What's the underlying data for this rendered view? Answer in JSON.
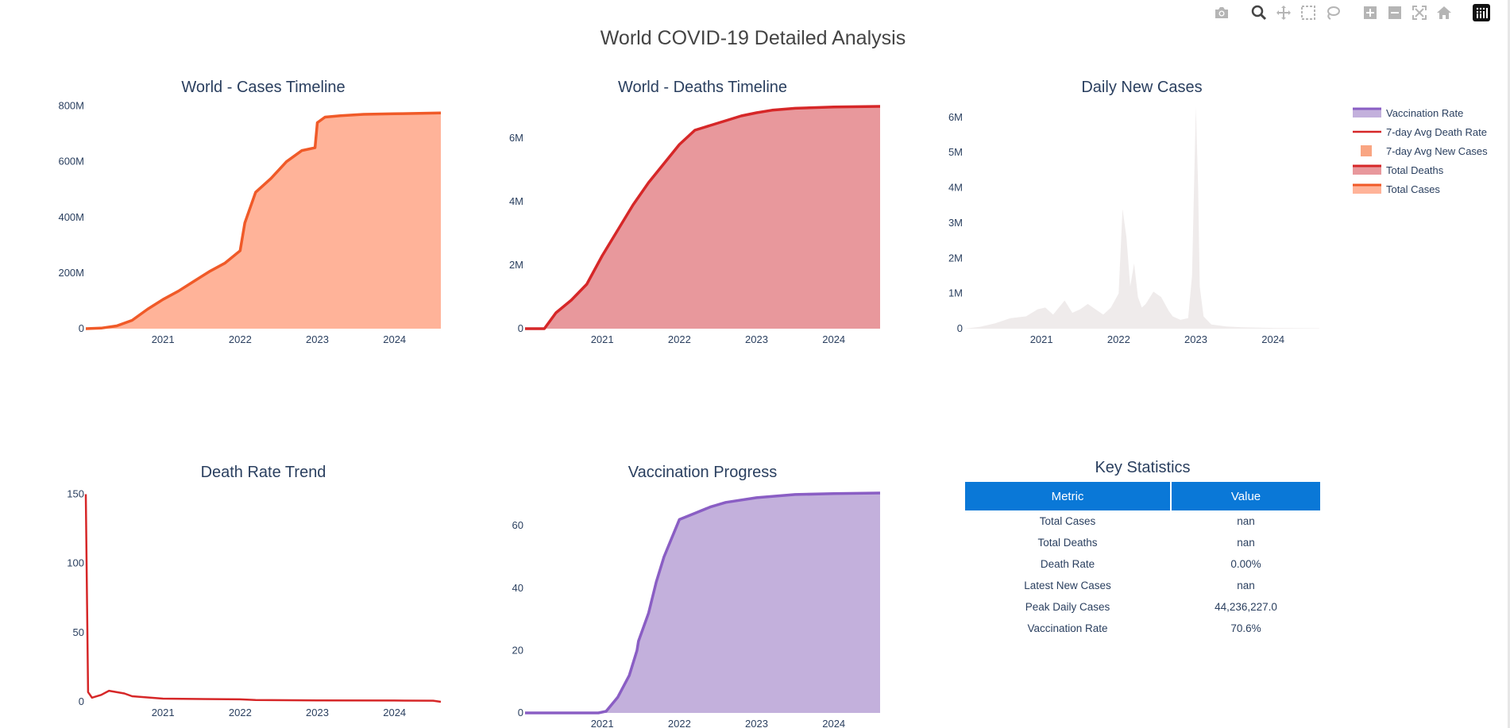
{
  "page": {
    "title": "World COVID-19 Detailed Analysis"
  },
  "modebar": {
    "buttons": [
      {
        "name": "camera-icon",
        "label": "Download plot as a png"
      },
      {
        "name": "zoom-icon",
        "label": "Zoom"
      },
      {
        "name": "pan-icon",
        "label": "Pan"
      },
      {
        "name": "box-select-icon",
        "label": "Box Select"
      },
      {
        "name": "lasso-select-icon",
        "label": "Lasso Select"
      },
      {
        "name": "zoom-in-icon",
        "label": "Zoom in"
      },
      {
        "name": "zoom-out-icon",
        "label": "Zoom out"
      },
      {
        "name": "autoscale-icon",
        "label": "Autoscale"
      },
      {
        "name": "reset-axes-icon",
        "label": "Reset axes"
      },
      {
        "name": "plotly-logo-icon",
        "label": "Produced with Plotly"
      }
    ]
  },
  "colors": {
    "cases_line": "#f05a28",
    "cases_fill": "#ffb399",
    "deaths_line": "#d62728",
    "deaths_fill": "#e8989c",
    "daily_fill": "#efebeb",
    "rate_line": "#d62728",
    "vacc_line": "#8a5ec4",
    "vacc_fill": "#c3b0dc",
    "header_bg": "#0a78d7"
  },
  "legend": [
    {
      "label": "Vaccination Rate",
      "style": "area",
      "color": "#8a5ec4",
      "fill": "#c3b0dc"
    },
    {
      "label": "7-day Avg Death Rate",
      "style": "line",
      "color": "#d62728"
    },
    {
      "label": "7-day Avg New Cases",
      "style": "square",
      "color": "#f9a582"
    },
    {
      "label": "Total Deaths",
      "style": "area",
      "color": "#d62728",
      "fill": "#e8989c"
    },
    {
      "label": "Total Cases",
      "style": "area",
      "color": "#f05a28",
      "fill": "#ffb399"
    }
  ],
  "chart_data": [
    {
      "id": "cases",
      "type": "area",
      "title": "World - Cases Timeline",
      "x_ticks": [
        "2021",
        "2022",
        "2023",
        "2024"
      ],
      "y_ticks": [
        {
          "v": 0,
          "label": "0"
        },
        {
          "v": 200,
          "label": "200M"
        },
        {
          "v": 400,
          "label": "400M"
        },
        {
          "v": 600,
          "label": "600M"
        },
        {
          "v": 800,
          "label": "800M"
        }
      ],
      "xlim": [
        2020.0,
        2024.6
      ],
      "ylim": [
        0,
        810
      ],
      "units": "millions",
      "series": [
        {
          "name": "Total Cases",
          "x": [
            2020.0,
            2020.2,
            2020.4,
            2020.6,
            2020.8,
            2021.0,
            2021.2,
            2021.4,
            2021.6,
            2021.8,
            2022.0,
            2022.06,
            2022.2,
            2022.4,
            2022.6,
            2022.8,
            2022.97,
            2023.0,
            2023.1,
            2023.3,
            2023.6,
            2024.0,
            2024.6
          ],
          "y": [
            0,
            2,
            10,
            30,
            70,
            105,
            135,
            170,
            205,
            235,
            280,
            380,
            490,
            540,
            600,
            640,
            650,
            740,
            760,
            765,
            770,
            772,
            775
          ]
        }
      ]
    },
    {
      "id": "deaths",
      "type": "area",
      "title": "World - Deaths Timeline",
      "x_ticks": [
        "2021",
        "2022",
        "2023",
        "2024"
      ],
      "y_ticks": [
        {
          "v": 0,
          "label": "0"
        },
        {
          "v": 2,
          "label": "2M"
        },
        {
          "v": 4,
          "label": "4M"
        },
        {
          "v": 6,
          "label": "6M"
        }
      ],
      "xlim": [
        2020.0,
        2024.6
      ],
      "ylim": [
        0,
        7.1
      ],
      "units": "millions",
      "series": [
        {
          "name": "Total Deaths",
          "x": [
            2020.0,
            2020.25,
            2020.4,
            2020.6,
            2020.8,
            2021.0,
            2021.2,
            2021.4,
            2021.6,
            2021.8,
            2022.0,
            2022.2,
            2022.4,
            2022.6,
            2022.8,
            2023.0,
            2023.2,
            2023.5,
            2024.0,
            2024.6
          ],
          "y": [
            0,
            0,
            0.5,
            0.9,
            1.4,
            2.3,
            3.1,
            3.9,
            4.6,
            5.2,
            5.8,
            6.25,
            6.4,
            6.55,
            6.7,
            6.8,
            6.88,
            6.94,
            6.98,
            7.0
          ]
        }
      ]
    },
    {
      "id": "daily",
      "type": "bar",
      "title": "Daily New Cases",
      "x_ticks": [
        "2021",
        "2022",
        "2023",
        "2024"
      ],
      "y_ticks": [
        {
          "v": 0,
          "label": "0"
        },
        {
          "v": 1,
          "label": "1M"
        },
        {
          "v": 2,
          "label": "2M"
        },
        {
          "v": 3,
          "label": "3M"
        },
        {
          "v": 4,
          "label": "4M"
        },
        {
          "v": 5,
          "label": "5M"
        },
        {
          "v": 6,
          "label": "6M"
        }
      ],
      "xlim": [
        2020.0,
        2024.6
      ],
      "ylim": [
        0,
        6.4
      ],
      "units": "millions",
      "series": [
        {
          "name": "7-day Avg New Cases",
          "x": [
            2020.0,
            2020.2,
            2020.4,
            2020.6,
            2020.8,
            2020.95,
            2021.05,
            2021.15,
            2021.3,
            2021.4,
            2021.5,
            2021.6,
            2021.7,
            2021.8,
            2021.9,
            2022.0,
            2022.05,
            2022.1,
            2022.15,
            2022.2,
            2022.25,
            2022.3,
            2022.35,
            2022.45,
            2022.55,
            2022.65,
            2022.7,
            2022.8,
            2022.9,
            2022.95,
            2023.0,
            2023.03,
            2023.05,
            2023.1,
            2023.2,
            2023.4,
            2023.6,
            2024.0,
            2024.6
          ],
          "y": [
            0,
            0.05,
            0.15,
            0.3,
            0.35,
            0.55,
            0.6,
            0.4,
            0.8,
            0.45,
            0.55,
            0.7,
            0.55,
            0.4,
            0.6,
            1.0,
            3.4,
            2.6,
            1.2,
            1.85,
            0.9,
            0.6,
            0.7,
            1.05,
            0.9,
            0.5,
            0.35,
            0.25,
            0.3,
            1.5,
            6.3,
            4.0,
            1.2,
            0.35,
            0.12,
            0.06,
            0.04,
            0.02,
            0.01
          ]
        }
      ]
    },
    {
      "id": "rate",
      "type": "line",
      "title": "Death Rate Trend",
      "x_ticks": [
        "2021",
        "2022",
        "2023",
        "2024"
      ],
      "y_ticks": [
        {
          "v": 0,
          "label": "0"
        },
        {
          "v": 50,
          "label": "50"
        },
        {
          "v": 100,
          "label": "100"
        },
        {
          "v": 150,
          "label": "150"
        }
      ],
      "xlim": [
        2020.0,
        2024.6
      ],
      "ylim": [
        0,
        152
      ],
      "series": [
        {
          "name": "7-day Avg Death Rate",
          "x": [
            2020.0,
            2020.03,
            2020.08,
            2020.2,
            2020.3,
            2020.5,
            2020.6,
            2021.0,
            2022.0,
            2022.2,
            2023.0,
            2024.0,
            2024.5,
            2024.6
          ],
          "y": [
            150,
            7,
            3,
            5,
            8,
            6,
            4,
            2.3,
            1.8,
            1.3,
            1.0,
            0.9,
            0.8,
            0
          ]
        }
      ]
    },
    {
      "id": "vacc",
      "type": "area",
      "title": "Vaccination Progress",
      "x_ticks": [
        "2021",
        "2022",
        "2023",
        "2024"
      ],
      "y_ticks": [
        {
          "v": 0,
          "label": "0"
        },
        {
          "v": 20,
          "label": "20"
        },
        {
          "v": 40,
          "label": "40"
        },
        {
          "v": 60,
          "label": "60"
        }
      ],
      "xlim": [
        2020.0,
        2024.6
      ],
      "ylim": [
        0,
        71
      ],
      "series": [
        {
          "name": "Vaccination Rate",
          "x": [
            2020.0,
            2020.95,
            2021.05,
            2021.1,
            2021.2,
            2021.35,
            2021.45,
            2021.47,
            2021.6,
            2021.7,
            2021.8,
            2021.9,
            2022.0,
            2022.2,
            2022.4,
            2022.6,
            2023.0,
            2023.5,
            2024.0,
            2024.6
          ],
          "y": [
            0,
            0,
            0.5,
            2,
            5,
            12,
            20,
            23,
            32,
            42,
            50,
            56,
            62,
            64,
            66,
            67.5,
            69,
            70,
            70.3,
            70.5
          ]
        }
      ]
    }
  ],
  "key_stats": {
    "title": "Key Statistics",
    "headers": [
      "Metric",
      "Value"
    ],
    "rows": [
      [
        "Total Cases",
        "nan"
      ],
      [
        "Total Deaths",
        "nan"
      ],
      [
        "Death Rate",
        "0.00%"
      ],
      [
        "Latest New Cases",
        "nan"
      ],
      [
        "Peak Daily Cases",
        "44,236,227.0"
      ],
      [
        "Vaccination Rate",
        "70.6%"
      ]
    ]
  }
}
